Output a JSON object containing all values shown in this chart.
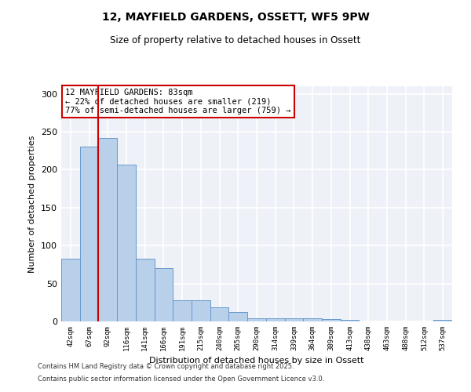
{
  "title": "12, MAYFIELD GARDENS, OSSETT, WF5 9PW",
  "subtitle": "Size of property relative to detached houses in Ossett",
  "xlabel": "Distribution of detached houses by size in Ossett",
  "ylabel": "Number of detached properties",
  "categories": [
    "42sqm",
    "67sqm",
    "92sqm",
    "116sqm",
    "141sqm",
    "166sqm",
    "191sqm",
    "215sqm",
    "240sqm",
    "265sqm",
    "290sqm",
    "314sqm",
    "339sqm",
    "364sqm",
    "389sqm",
    "413sqm",
    "438sqm",
    "463sqm",
    "488sqm",
    "512sqm",
    "537sqm"
  ],
  "values": [
    83,
    230,
    242,
    207,
    83,
    70,
    28,
    28,
    19,
    12,
    4,
    4,
    4,
    4,
    3,
    2,
    0,
    0,
    0,
    0,
    2
  ],
  "bar_color": "#b8d0ea",
  "bar_edge_color": "#6699cc",
  "bar_width": 1.0,
  "vline_x_idx": 1,
  "vline_color": "#cc0000",
  "annotation_box_title": "12 MAYFIELD GARDENS: 83sqm",
  "annotation_line1": "← 22% of detached houses are smaller (219)",
  "annotation_line2": "77% of semi-detached houses are larger (759) →",
  "annotation_box_color": "#cc0000",
  "ylim": [
    0,
    310
  ],
  "yticks": [
    0,
    50,
    100,
    150,
    200,
    250,
    300
  ],
  "background_color": "#eef2f8",
  "grid_color": "#ffffff",
  "footer1": "Contains HM Land Registry data © Crown copyright and database right 2025.",
  "footer2": "Contains public sector information licensed under the Open Government Licence v3.0."
}
